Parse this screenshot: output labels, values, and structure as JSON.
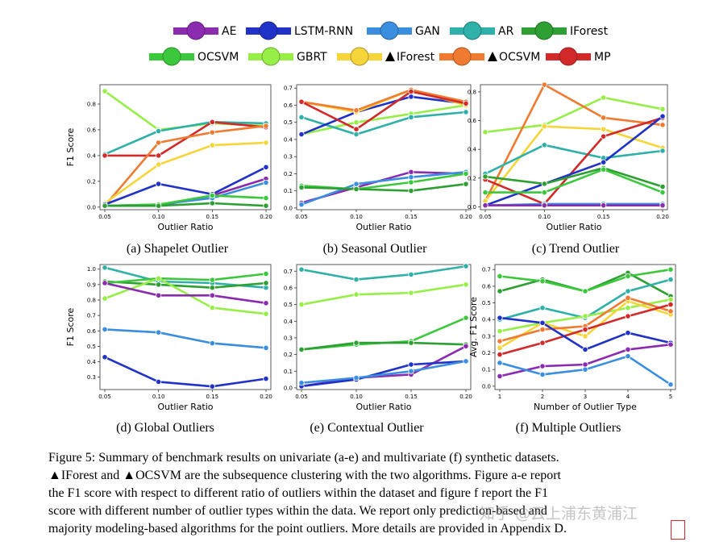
{
  "colors": {
    "AE": "#8a2bb0",
    "LSTM-RNN": "#2032c8",
    "GAN": "#3a8ee0",
    "AR": "#2fb0a8",
    "IForest": "#2ea033",
    "OCSVM": "#3cc83c",
    "GBRT": "#96ee46",
    "IForest_sub": "#f6d53a",
    "OCSVM_sub": "#f07a30",
    "MP": "#d22a2a"
  },
  "legend": [
    {
      "key": "AE",
      "label": "AE",
      "triangle": false
    },
    {
      "key": "LSTM-RNN",
      "label": "LSTM-RNN",
      "triangle": false
    },
    {
      "key": "GAN",
      "label": "GAN",
      "triangle": false
    },
    {
      "key": "AR",
      "label": "AR",
      "triangle": false
    },
    {
      "key": "IForest",
      "label": "IForest",
      "triangle": false
    },
    {
      "key": "OCSVM",
      "label": "OCSVM",
      "triangle": false
    },
    {
      "key": "GBRT",
      "label": "GBRT",
      "triangle": false
    },
    {
      "key": "IForest_sub",
      "label": "IForest",
      "triangle": true
    },
    {
      "key": "OCSVM_sub",
      "label": "OCSVM",
      "triangle": true
    },
    {
      "key": "MP",
      "label": "MP",
      "triangle": false
    }
  ],
  "chart_data": [
    {
      "id": "a",
      "type": "line",
      "caption": "(a) Shapelet Outlier",
      "xlabel": "Outlier Ratio",
      "ylabel": "F1 Score",
      "x": [
        "0.05",
        "0.10",
        "0.15",
        "0.20"
      ],
      "ylim": [
        -0.02,
        0.95
      ],
      "yticks": [
        "0.0",
        "0.2",
        "0.4",
        "0.6",
        "0.8"
      ],
      "ytick_values": [
        0,
        0.2,
        0.4,
        0.6,
        0.8
      ],
      "series": [
        {
          "key": "GBRT",
          "values": [
            0.9,
            0.6,
            0.65,
            0.63
          ]
        },
        {
          "key": "AR",
          "values": [
            0.41,
            0.59,
            0.66,
            0.65
          ]
        },
        {
          "key": "MP",
          "values": [
            0.4,
            0.4,
            0.66,
            0.62
          ]
        },
        {
          "key": "OCSVM_sub",
          "values": [
            0.01,
            0.5,
            0.58,
            0.63
          ]
        },
        {
          "key": "IForest_sub",
          "values": [
            0.03,
            0.33,
            0.48,
            0.5
          ]
        },
        {
          "key": "LSTM-RNN",
          "values": [
            0.02,
            0.18,
            0.1,
            0.31
          ]
        },
        {
          "key": "AE",
          "values": [
            0.01,
            0.01,
            0.09,
            0.22
          ]
        },
        {
          "key": "GAN",
          "values": [
            0.01,
            0.02,
            0.07,
            0.19
          ]
        },
        {
          "key": "OCSVM",
          "values": [
            0.01,
            0.02,
            0.09,
            0.07
          ]
        },
        {
          "key": "IForest",
          "values": [
            0.01,
            0.01,
            0.03,
            0.01
          ]
        }
      ]
    },
    {
      "id": "b",
      "type": "line",
      "caption": "(b) Seasonal Outlier",
      "xlabel": "Outlier Ratio",
      "ylabel": "",
      "x": [
        "0.05",
        "0.10",
        "0.15",
        "0.20"
      ],
      "ylim": [
        -0.01,
        0.72
      ],
      "yticks": [
        "0.0",
        "0.1",
        "0.2",
        "0.3",
        "0.4",
        "0.5",
        "0.6",
        "0.7"
      ],
      "ytick_values": [
        0,
        0.1,
        0.2,
        0.3,
        0.4,
        0.5,
        0.6,
        0.7
      ],
      "series": [
        {
          "key": "GBRT",
          "values": [
            0.43,
            0.5,
            0.55,
            0.6
          ]
        },
        {
          "key": "AR",
          "values": [
            0.53,
            0.43,
            0.53,
            0.56
          ]
        },
        {
          "key": "LSTM-RNN",
          "values": [
            0.43,
            0.56,
            0.65,
            0.61
          ]
        },
        {
          "key": "IForest_sub",
          "values": [
            0.62,
            0.56,
            0.69,
            0.6
          ]
        },
        {
          "key": "OCSVM_sub",
          "values": [
            0.62,
            0.57,
            0.69,
            0.62
          ]
        },
        {
          "key": "MP",
          "values": [
            0.62,
            0.46,
            0.68,
            0.61
          ]
        },
        {
          "key": "AE",
          "values": [
            0.03,
            0.12,
            0.21,
            0.2
          ]
        },
        {
          "key": "GAN",
          "values": [
            0.02,
            0.14,
            0.18,
            0.21
          ]
        },
        {
          "key": "OCSVM",
          "values": [
            0.13,
            0.11,
            0.15,
            0.2
          ]
        },
        {
          "key": "IForest",
          "values": [
            0.12,
            0.11,
            0.1,
            0.14
          ]
        }
      ]
    },
    {
      "id": "c",
      "type": "line",
      "caption": "(c) Trend Outlier",
      "xlabel": "Outlier Ratio",
      "ylabel": "",
      "x": [
        "0.05",
        "0.10",
        "0.15",
        "0.20"
      ],
      "ylim": [
        -0.02,
        0.85
      ],
      "yticks": [
        "0.0",
        "0.2",
        "0.4",
        "0.6",
        "0.8"
      ],
      "ytick_values": [
        0,
        0.2,
        0.4,
        0.6,
        0.8
      ],
      "series": [
        {
          "key": "GBRT",
          "values": [
            0.52,
            0.57,
            0.76,
            0.68
          ]
        },
        {
          "key": "OCSVM_sub",
          "values": [
            0.04,
            0.85,
            0.62,
            0.57
          ]
        },
        {
          "key": "IForest_sub",
          "values": [
            0.04,
            0.56,
            0.54,
            0.41
          ]
        },
        {
          "key": "AR",
          "values": [
            0.23,
            0.43,
            0.34,
            0.39
          ]
        },
        {
          "key": "MP",
          "values": [
            0.19,
            0.02,
            0.49,
            0.62
          ]
        },
        {
          "key": "LSTM-RNN",
          "values": [
            0.01,
            0.16,
            0.31,
            0.63
          ]
        },
        {
          "key": "IForest",
          "values": [
            0.21,
            0.16,
            0.27,
            0.14
          ]
        },
        {
          "key": "OCSVM",
          "values": [
            0.1,
            0.1,
            0.26,
            0.1
          ]
        },
        {
          "key": "GAN",
          "values": [
            0.01,
            0.02,
            0.02,
            0.02
          ]
        },
        {
          "key": "AE",
          "values": [
            0.01,
            0.01,
            0.01,
            0.01
          ]
        }
      ]
    },
    {
      "id": "d",
      "type": "line",
      "caption": "(d) Global Outliers",
      "xlabel": "Outlier Ratio",
      "ylabel": "F1 Score",
      "x": [
        "0.05",
        "0.10",
        "0.15",
        "0.20"
      ],
      "ylim": [
        0.22,
        1.03
      ],
      "yticks": [
        "0.3",
        "0.4",
        "0.5",
        "0.6",
        "0.7",
        "0.8",
        "0.9",
        "1.0"
      ],
      "ytick_values": [
        0.3,
        0.4,
        0.5,
        0.6,
        0.7,
        0.8,
        0.9,
        1.0
      ],
      "series": [
        {
          "key": "AR",
          "values": [
            1.01,
            0.92,
            0.91,
            0.88
          ]
        },
        {
          "key": "IForest",
          "values": [
            0.92,
            0.9,
            0.88,
            0.91
          ]
        },
        {
          "key": "OCSVM",
          "values": [
            0.91,
            0.94,
            0.93,
            0.97
          ]
        },
        {
          "key": "GBRT",
          "values": [
            0.81,
            0.94,
            0.75,
            0.71
          ]
        },
        {
          "key": "AE",
          "values": [
            0.91,
            0.83,
            0.83,
            0.78
          ]
        },
        {
          "key": "GAN",
          "values": [
            0.61,
            0.59,
            0.52,
            0.49
          ]
        },
        {
          "key": "LSTM-RNN",
          "values": [
            0.43,
            0.27,
            0.24,
            0.29
          ]
        }
      ]
    },
    {
      "id": "e",
      "type": "line",
      "caption": "(e) Contextual Outlier",
      "xlabel": "Outlier Ratio",
      "ylabel": "",
      "x": [
        "0.05",
        "0.10",
        "0.15",
        "0.20"
      ],
      "ylim": [
        -0.01,
        0.74
      ],
      "yticks": [
        "0.0",
        "0.1",
        "0.2",
        "0.3",
        "0.4",
        "0.5",
        "0.6",
        "0.7"
      ],
      "ytick_values": [
        0,
        0.1,
        0.2,
        0.3,
        0.4,
        0.5,
        0.6,
        0.7
      ],
      "series": [
        {
          "key": "AR",
          "values": [
            0.71,
            0.65,
            0.68,
            0.73
          ]
        },
        {
          "key": "GBRT",
          "values": [
            0.5,
            0.56,
            0.57,
            0.62
          ]
        },
        {
          "key": "OCSVM",
          "values": [
            0.23,
            0.26,
            0.28,
            0.42
          ]
        },
        {
          "key": "IForest",
          "values": [
            0.23,
            0.27,
            0.27,
            0.26
          ]
        },
        {
          "key": "AE",
          "values": [
            0.01,
            0.06,
            0.08,
            0.25
          ]
        },
        {
          "key": "LSTM-RNN",
          "values": [
            0.01,
            0.05,
            0.14,
            0.16
          ]
        },
        {
          "key": "GAN",
          "values": [
            0.03,
            0.06,
            0.1,
            0.16
          ]
        }
      ]
    },
    {
      "id": "f",
      "type": "line",
      "caption": "(f) Multiple Outliers",
      "xlabel": "Number of Outlier Type",
      "ylabel": "Avg. F1 Score",
      "x": [
        "1",
        "2",
        "3",
        "4",
        "5"
      ],
      "ylim": [
        -0.02,
        0.73
      ],
      "yticks": [
        "0.0",
        "0.1",
        "0.2",
        "0.3",
        "0.4",
        "0.5",
        "0.6",
        "0.7"
      ],
      "ytick_values": [
        0,
        0.1,
        0.2,
        0.3,
        0.4,
        0.5,
        0.6,
        0.7
      ],
      "series": [
        {
          "key": "IForest",
          "values": [
            0.57,
            0.64,
            0.57,
            0.68,
            0.54
          ]
        },
        {
          "key": "OCSVM",
          "values": [
            0.66,
            0.63,
            0.57,
            0.66,
            0.7
          ]
        },
        {
          "key": "AR",
          "values": [
            0.4,
            0.47,
            0.41,
            0.57,
            0.64
          ]
        },
        {
          "key": "GBRT",
          "values": [
            0.33,
            0.38,
            0.42,
            0.47,
            0.52
          ]
        },
        {
          "key": "IForest_sub",
          "values": [
            0.23,
            0.38,
            0.3,
            0.51,
            0.43
          ]
        },
        {
          "key": "OCSVM_sub",
          "values": [
            0.27,
            0.34,
            0.36,
            0.53,
            0.45
          ]
        },
        {
          "key": "MP",
          "values": [
            0.19,
            0.26,
            0.34,
            0.42,
            0.49
          ]
        },
        {
          "key": "LSTM-RNN",
          "values": [
            0.41,
            0.38,
            0.22,
            0.32,
            0.26
          ]
        },
        {
          "key": "AE",
          "values": [
            0.06,
            0.12,
            0.13,
            0.22,
            0.25
          ]
        },
        {
          "key": "GAN",
          "values": [
            0.14,
            0.07,
            0.1,
            0.18,
            0.01
          ]
        }
      ]
    }
  ],
  "caption": {
    "lines": [
      "Figure 5: Summary of benchmark results on univariate (a-e) and multivariate (f) synthetic datasets.",
      "▲IForest and ▲OCSVM are the subsequence clustering with the two algorithms. Figure a-e report",
      "the F1 score with respect to different ratio of outliers within the dataset and figure f report the F1",
      "score with different number of outlier types within the data. We report only prediction-based and",
      "majority modeling-based algorithms for the point outliers. More details are provided in Appendix D."
    ]
  },
  "watermark": "知乎 @云上浦东黄浦江"
}
